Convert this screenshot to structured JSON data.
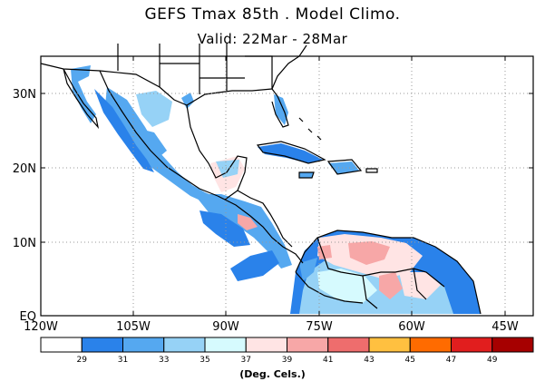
{
  "title": "GEFS Tmax 85th . Model Climo.",
  "subtitle": "Valid: 22Mar - 28Mar",
  "lat_labels": [
    "30N",
    "20N",
    "10N",
    "EQ"
  ],
  "lon_labels": [
    "120W",
    "105W",
    "90W",
    "75W",
    "60W",
    "45W"
  ],
  "colorbar": {
    "colors": [
      "#ffffff",
      "#2a82ea",
      "#55a8f0",
      "#96d2f6",
      "#d6fafe",
      "#ffe4e4",
      "#f7a7a7",
      "#ee6d6d",
      "#ffc040",
      "#ff6b00",
      "#e11e1e",
      "#a60000"
    ],
    "labels": [
      "29",
      "31",
      "33",
      "35",
      "37",
      "39",
      "41",
      "43",
      "45",
      "47",
      "49"
    ]
  },
  "units": "(Deg. Cels.)"
}
